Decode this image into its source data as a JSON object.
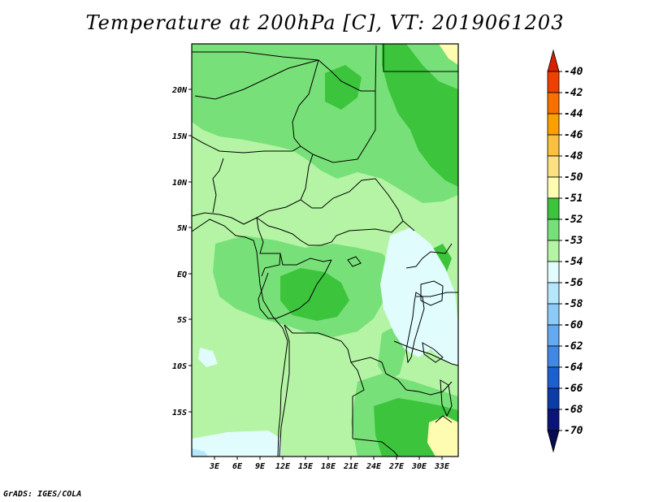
{
  "title": "Temperature at 200hPa [C], VT: 2019061203",
  "credit": "GrADS: IGES/COLA",
  "map": {
    "lat_ticks": [
      "20N",
      "15N",
      "10N",
      "5N",
      "EQ",
      "5S",
      "10S",
      "15S"
    ],
    "lon_ticks": [
      "3E",
      "6E",
      "9E",
      "12E",
      "15E",
      "18E",
      "21E",
      "24E",
      "27E",
      "30E",
      "33E"
    ]
  },
  "colorbar": {
    "labels": [
      "-40",
      "-42",
      "-44",
      "-46",
      "-48",
      "-50",
      "-51",
      "-52",
      "-53",
      "-54",
      "-56",
      "-58",
      "-60",
      "-62",
      "-64",
      "-66",
      "-68",
      "-70"
    ],
    "colors": [
      "#d82000",
      "#ee4000",
      "#f87000",
      "#fba000",
      "#fbc040",
      "#fde080",
      "#fefcb0",
      "#3cc43c",
      "#78e078",
      "#b4f4a4",
      "#e0fcfc",
      "#b4e6fc",
      "#8ccaf8",
      "#64aaf0",
      "#4088e4",
      "#1c60d0",
      "#0c3ca8",
      "#0a1478",
      "#0a0a50"
    ]
  },
  "colors": {
    "c51": "#fefcb0",
    "c52": "#3cc43c",
    "c53": "#78e078",
    "c54": "#b4f4a4",
    "c56": "#e0fcfc",
    "c58": "#b4e6fc"
  }
}
